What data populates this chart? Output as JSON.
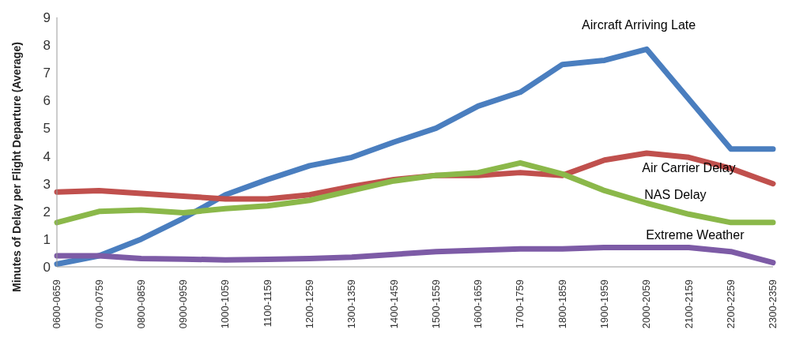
{
  "chart_data": {
    "type": "line",
    "ylabel": "Minutes of Delay per Flight Departure (Average)",
    "categories": [
      "0600-0659",
      "0700-0759",
      "0800-0859",
      "0900-0959",
      "1000-1059",
      "1100-1159",
      "1200-1259",
      "1300-1359",
      "1400-1459",
      "1500-1559",
      "1600-1659",
      "1700-1759",
      "1800-1859",
      "1900-1959",
      "2000-2059",
      "2100-2159",
      "2200-2259",
      "2300-2359"
    ],
    "series": [
      {
        "name": "Aircraft Arriving Late",
        "color": "#4a7ebf",
        "values": [
          0.1,
          0.4,
          1.0,
          1.75,
          2.6,
          3.15,
          3.65,
          3.95,
          4.5,
          5.0,
          5.8,
          6.3,
          7.3,
          7.45,
          7.85,
          6.05,
          4.25,
          4.25
        ]
      },
      {
        "name": "Air Carrier Delay",
        "color": "#c0504d",
        "values": [
          2.7,
          2.75,
          2.65,
          2.55,
          2.45,
          2.45,
          2.6,
          2.9,
          3.15,
          3.3,
          3.3,
          3.4,
          3.3,
          3.85,
          4.1,
          3.95,
          3.55,
          3.0
        ]
      },
      {
        "name": "NAS Delay",
        "color": "#8bb84a",
        "values": [
          1.6,
          2.0,
          2.05,
          1.95,
          2.1,
          2.2,
          2.4,
          2.75,
          3.1,
          3.3,
          3.4,
          3.75,
          3.35,
          2.75,
          2.3,
          1.9,
          1.6,
          1.6
        ]
      },
      {
        "name": "Extreme Weather",
        "color": "#7d5ba6",
        "values": [
          0.4,
          0.4,
          0.3,
          0.28,
          0.25,
          0.27,
          0.3,
          0.35,
          0.45,
          0.55,
          0.6,
          0.65,
          0.65,
          0.7,
          0.7,
          0.7,
          0.55,
          0.15
        ]
      }
    ],
    "ylim": [
      0,
      9
    ],
    "yticks": [
      0,
      1,
      2,
      3,
      4,
      5,
      6,
      7,
      8,
      9
    ],
    "grid": false,
    "legend": false,
    "marker": "none",
    "line_style": "solid"
  }
}
